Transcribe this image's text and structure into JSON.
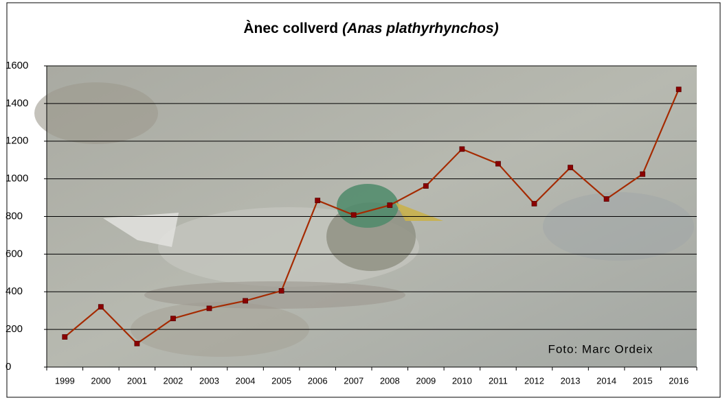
{
  "chart_data": {
    "type": "line",
    "title": [
      "Ànec collverd",
      "(Anas plathyrhynchos)"
    ],
    "annotation": "Foto: Marc Ordeix",
    "categories": [
      "1999",
      "2000",
      "2001",
      "2002",
      "2003",
      "2004",
      "2005",
      "2006",
      "2007",
      "2008",
      "2009",
      "2010",
      "2011",
      "2012",
      "2013",
      "2014",
      "2015",
      "2016"
    ],
    "values": [
      160,
      320,
      125,
      258,
      312,
      352,
      405,
      885,
      808,
      860,
      962,
      1158,
      1080,
      868,
      1060,
      893,
      1025,
      1475
    ],
    "color": "#a52a00",
    "ylim": [
      0,
      1600
    ],
    "yticks": [
      0,
      200,
      400,
      600,
      800,
      1000,
      1200,
      1400,
      1600
    ],
    "grid": true
  }
}
